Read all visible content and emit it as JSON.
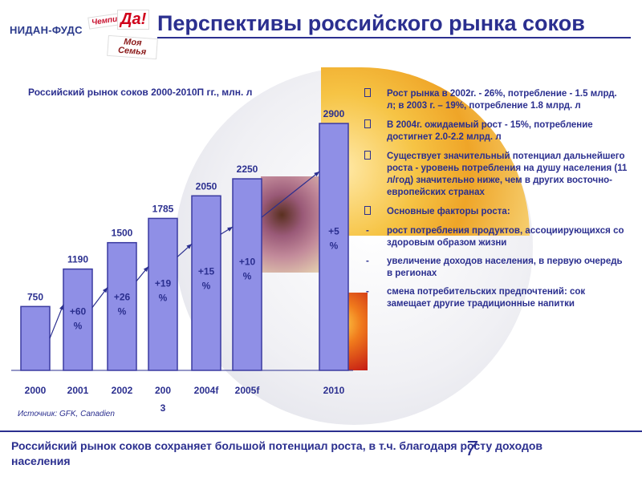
{
  "logos": {
    "nidan": "НИДАН-ФУДС",
    "chempion": "Чемпион",
    "da": "Да!",
    "moya_semya": "Моя Семья"
  },
  "title": "Перспективы российского рынка соков",
  "colors": {
    "primary": "#2b2f8f",
    "bar_fill": "#8f8fe6",
    "bar_stroke": "#3a3aa0"
  },
  "chart_data": {
    "type": "bar",
    "title": "Российский рынок соков 2000-2010П гг., млн. л",
    "categories": [
      "2000",
      "2001",
      "2002",
      "2003",
      "2004f",
      "2005f",
      "2010"
    ],
    "tick_labels": [
      "2000",
      "2001",
      "2002",
      "200",
      "2004f",
      "2005f",
      "2010"
    ],
    "tick_labels_sub": [
      "",
      "",
      "",
      "3",
      "",
      "",
      ""
    ],
    "values": [
      750,
      1190,
      1500,
      1785,
      2050,
      2250,
      2900
    ],
    "growth_labels": [
      {
        "top": "+60",
        "bottom": "%"
      },
      {
        "top": "+26",
        "bottom": "%"
      },
      {
        "top": "+19",
        "bottom": "%"
      },
      {
        "top": "+15",
        "bottom": "%"
      },
      {
        "top": "+10",
        "bottom": "%"
      },
      {
        "top": "+5",
        "bottom": "%"
      }
    ],
    "ylim": [
      0,
      3200
    ],
    "xlabel": "",
    "ylabel": "",
    "grid": false,
    "legend": "none"
  },
  "bullets": [
    "Рост рынка в 2002г. - 26%, потребление - 1.5 млрд. л; в 2003 г. – 19%, потребление 1.8 млрд. л",
    "В 2004г. ожидаемый рост - 15%, потребление достигнет 2.0-2.2 млрд. л",
    "Существует значительный потенциал дальнейшего роста - уровень потребления на душу населения (11 л/год) значительно ниже, чем в других восточно-европейских странах",
    "Основные факторы роста:"
  ],
  "subbullets": [
    "рост потребления продуктов, ассоциирующихся со здоровым образом жизни",
    "увеличение доходов населения, в первую очередь в регионах",
    "смена потребительских предпочтений: сок замещает другие традиционные напитки"
  ],
  "source": "Источник: GFK, Canadien",
  "footer": "Российский рынок соков сохраняет большой потенциал роста, в т.ч. благодаря росту доходов населения",
  "page_number": "7"
}
